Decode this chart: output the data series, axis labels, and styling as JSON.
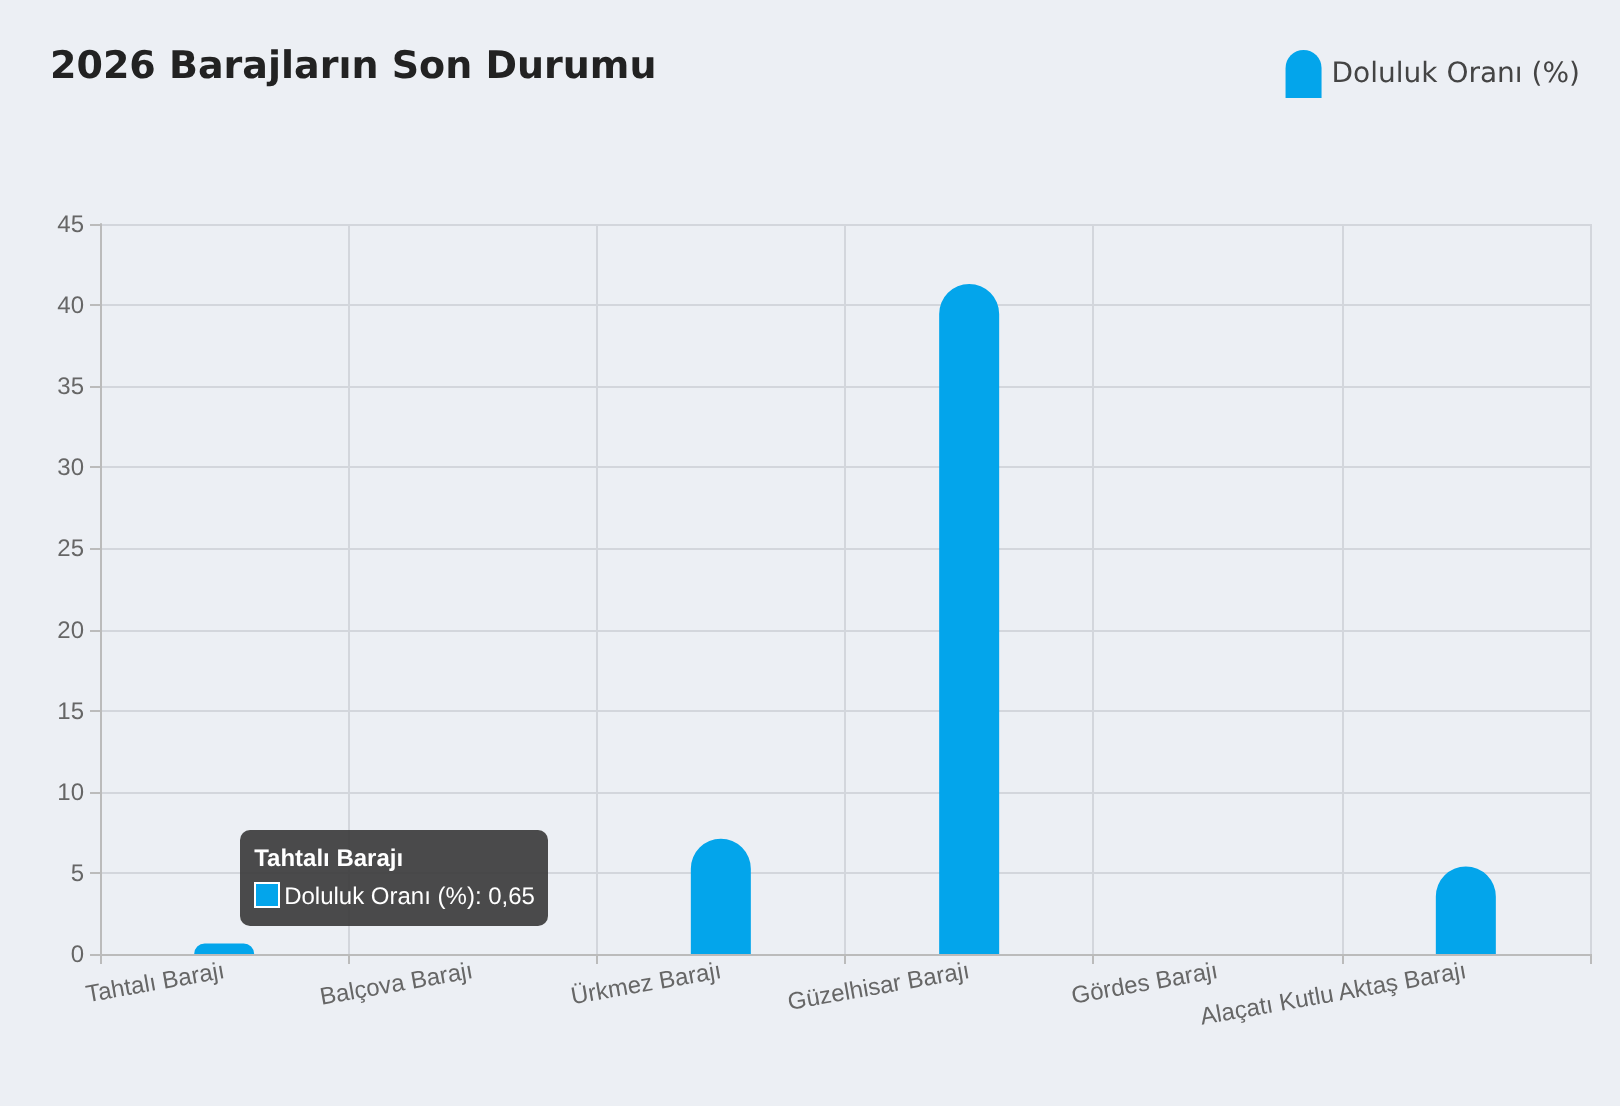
{
  "chart_data": {
    "type": "bar",
    "title": "2026 Barajların Son Durumu",
    "categories": [
      "Tahtalı Barajı",
      "Balçova Barajı",
      "Ürkmez Barajı",
      "Güzelhisar Barajı",
      "Gördes Barajı",
      "Alaçatı Kutlu Aktaş Barajı"
    ],
    "series": [
      {
        "name": "Doluluk Oranı (%)",
        "color": "#03a5eb",
        "values": [
          0.65,
          0,
          7.1,
          41.3,
          0,
          5.4
        ]
      }
    ],
    "ylim": [
      0,
      45
    ],
    "yticks": [
      0,
      5,
      10,
      15,
      20,
      25,
      30,
      35,
      40,
      45
    ],
    "grid": true,
    "legend": "top right",
    "annotations": [
      "Tahtalı Barajı\nDoluluk Oranı (%): 0,65"
    ]
  }
}
